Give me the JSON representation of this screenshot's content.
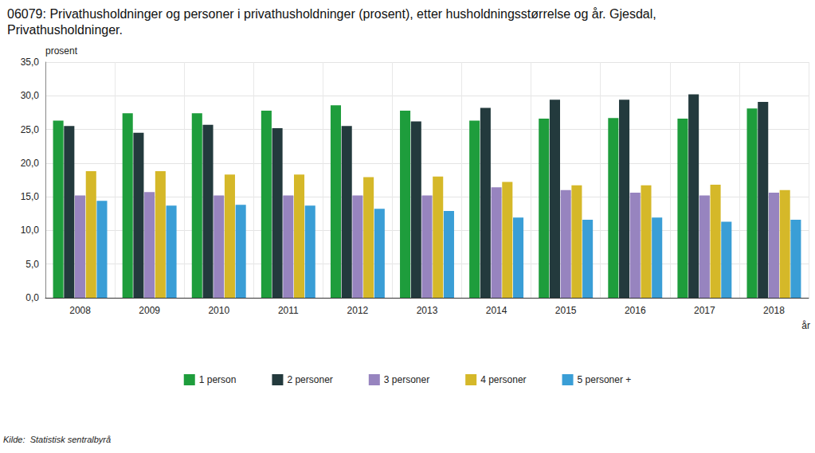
{
  "chart_data": {
    "type": "bar",
    "title": "06079: Privathusholdninger og personer i privathusholdninger (prosent), etter husholdningsstørrelse og år. Gjesdal, Privathusholdninger.",
    "x_label": "år",
    "y_label": "prosent",
    "source": "Kilde:  Statistisk sentralbyrå",
    "categories": [
      "2008",
      "2009",
      "2010",
      "2011",
      "2012",
      "2013",
      "2014",
      "2015",
      "2016",
      "2017",
      "2018"
    ],
    "series": [
      {
        "name": "1 person",
        "color": "#1e9d3c",
        "values": [
          26.3,
          27.4,
          27.4,
          27.8,
          28.6,
          27.8,
          26.3,
          26.6,
          26.7,
          26.6,
          28.1
        ]
      },
      {
        "name": "2 personer",
        "color": "#233a3d",
        "values": [
          25.5,
          24.5,
          25.7,
          25.2,
          25.5,
          26.2,
          28.2,
          29.4,
          29.4,
          30.2,
          29.1
        ]
      },
      {
        "name": "3 personer",
        "color": "#9784bf",
        "values": [
          15.2,
          15.7,
          15.2,
          15.2,
          15.2,
          15.2,
          16.4,
          16.0,
          15.6,
          15.2,
          15.6
        ]
      },
      {
        "name": "4 personer",
        "color": "#d5b829",
        "values": [
          18.8,
          18.8,
          18.3,
          18.3,
          17.9,
          18.0,
          17.2,
          16.7,
          16.7,
          16.8,
          16.0
        ]
      },
      {
        "name": "5 personer +",
        "color": "#3a9ed6",
        "values": [
          14.4,
          13.7,
          13.8,
          13.7,
          13.2,
          12.9,
          11.9,
          11.6,
          11.9,
          11.3,
          11.6
        ]
      }
    ],
    "ylim": [
      0,
      35
    ],
    "yticks": [
      {
        "value": 0,
        "label": "0,0"
      },
      {
        "value": 5,
        "label": "5,0"
      },
      {
        "value": 10,
        "label": "10,0"
      },
      {
        "value": 15,
        "label": "15,0"
      },
      {
        "value": 20,
        "label": "20,0"
      },
      {
        "value": 25,
        "label": "25,0"
      },
      {
        "value": 30,
        "label": "30,0"
      },
      {
        "value": 35,
        "label": "35,0"
      }
    ],
    "grid": true,
    "legend": "bottom"
  }
}
